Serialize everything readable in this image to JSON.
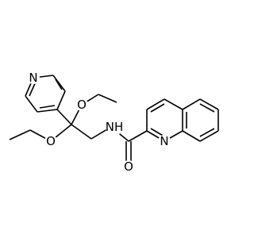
{
  "atoms": [
    {
      "label": "N"
    },
    {
      "label": "O"
    },
    {
      "label": "O"
    },
    {
      "label": "NH"
    },
    {
      "label": "N"
    },
    {
      "label": "O"
    }
  ]
}
